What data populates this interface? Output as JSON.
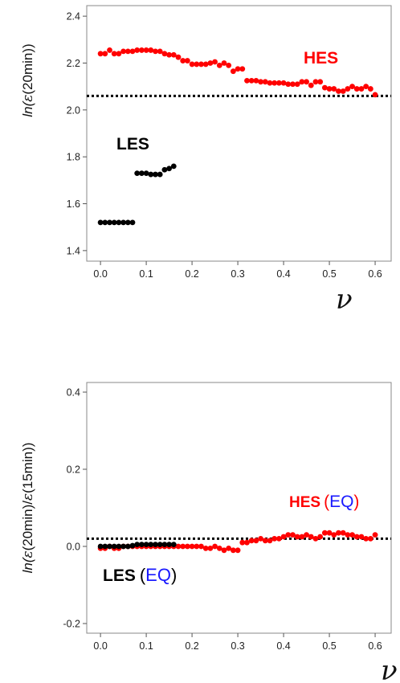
{
  "chart_data": [
    {
      "type": "scatter",
      "ylabel_prefix": "ln(",
      "ylabel_eps": "ε",
      "ylabel_rest": "(20min",
      "ylabel_close": "))",
      "xlabel": "ν",
      "xlim": [
        -0.03,
        0.635
      ],
      "ylim": [
        1.355,
        2.445
      ],
      "x_ticks": [
        "0.0",
        "0.1",
        "0.2",
        "0.3",
        "0.4",
        "0.5",
        "0.6"
      ],
      "x_tick_values": [
        0,
        0.1,
        0.2,
        0.3,
        0.4,
        0.5,
        0.6
      ],
      "y_ticks": [
        "1.4",
        "1.6",
        "1.8",
        "2.0",
        "2.2",
        "2.4"
      ],
      "y_tick_values": [
        1.4,
        1.6,
        1.8,
        2.0,
        2.2,
        2.4
      ],
      "grid": false,
      "reference_line_y": 2.06,
      "series": [
        {
          "name": "LES",
          "color": "#000000",
          "x": [
            0.0,
            0.01,
            0.02,
            0.03,
            0.04,
            0.05,
            0.06,
            0.07,
            0.08,
            0.09,
            0.1,
            0.11,
            0.12,
            0.13,
            0.14,
            0.15,
            0.16
          ],
          "y": [
            1.52,
            1.52,
            1.52,
            1.52,
            1.52,
            1.52,
            1.52,
            1.52,
            1.73,
            1.73,
            1.73,
            1.725,
            1.725,
            1.725,
            1.745,
            1.75,
            1.76
          ]
        },
        {
          "name": "HES",
          "color": "#ff0000",
          "x": [
            0.0,
            0.01,
            0.02,
            0.03,
            0.04,
            0.05,
            0.06,
            0.07,
            0.08,
            0.09,
            0.1,
            0.11,
            0.12,
            0.13,
            0.14,
            0.15,
            0.16,
            0.17,
            0.18,
            0.19,
            0.2,
            0.21,
            0.22,
            0.23,
            0.24,
            0.25,
            0.26,
            0.27,
            0.28,
            0.29,
            0.3,
            0.31,
            0.32,
            0.33,
            0.34,
            0.35,
            0.36,
            0.37,
            0.38,
            0.39,
            0.4,
            0.41,
            0.42,
            0.43,
            0.44,
            0.45,
            0.46,
            0.47,
            0.48,
            0.49,
            0.5,
            0.51,
            0.52,
            0.53,
            0.54,
            0.55,
            0.56,
            0.57,
            0.58,
            0.59,
            0.6
          ],
          "y": [
            2.24,
            2.24,
            2.255,
            2.24,
            2.24,
            2.25,
            2.25,
            2.25,
            2.255,
            2.255,
            2.255,
            2.255,
            2.25,
            2.25,
            2.24,
            2.235,
            2.235,
            2.225,
            2.21,
            2.21,
            2.195,
            2.195,
            2.195,
            2.195,
            2.2,
            2.205,
            2.19,
            2.2,
            2.19,
            2.165,
            2.175,
            2.175,
            2.125,
            2.125,
            2.125,
            2.12,
            2.12,
            2.115,
            2.115,
            2.115,
            2.115,
            2.11,
            2.11,
            2.11,
            2.12,
            2.12,
            2.105,
            2.12,
            2.12,
            2.095,
            2.09,
            2.09,
            2.08,
            2.08,
            2.09,
            2.1,
            2.09,
            2.09,
            2.1,
            2.09,
            2.065
          ]
        }
      ],
      "annotations": {
        "hes": "HES",
        "les": "LES"
      }
    },
    {
      "type": "scatter",
      "ylabel_prefix": "ln(",
      "ylabel_eps": "ε",
      "ylabel_rest": "(20min)/",
      "ylabel_eps2": "ε",
      "ylabel_rest2": "(15min",
      "ylabel_close": "))",
      "xlabel": "ν",
      "xlim": [
        -0.03,
        0.635
      ],
      "ylim": [
        -0.225,
        0.425
      ],
      "x_ticks": [
        "0.0",
        "0.1",
        "0.2",
        "0.3",
        "0.4",
        "0.5",
        "0.6"
      ],
      "x_tick_values": [
        0,
        0.1,
        0.2,
        0.3,
        0.4,
        0.5,
        0.6
      ],
      "y_ticks": [
        "-0.2",
        "0.0",
        "0.2",
        "0.4"
      ],
      "y_tick_values": [
        -0.2,
        0.0,
        0.2,
        0.4
      ],
      "grid": false,
      "reference_line_y": 0.02,
      "series": [
        {
          "name": "HES",
          "color": "#ff0000",
          "x": [
            0.0,
            0.01,
            0.02,
            0.03,
            0.04,
            0.05,
            0.06,
            0.07,
            0.08,
            0.09,
            0.1,
            0.11,
            0.12,
            0.13,
            0.14,
            0.15,
            0.16,
            0.17,
            0.18,
            0.19,
            0.2,
            0.21,
            0.22,
            0.23,
            0.24,
            0.25,
            0.26,
            0.27,
            0.28,
            0.29,
            0.3,
            0.31,
            0.32,
            0.33,
            0.34,
            0.35,
            0.36,
            0.37,
            0.38,
            0.39,
            0.4,
            0.41,
            0.42,
            0.43,
            0.44,
            0.45,
            0.46,
            0.47,
            0.48,
            0.49,
            0.5,
            0.51,
            0.52,
            0.53,
            0.54,
            0.55,
            0.56,
            0.57,
            0.58,
            0.59,
            0.6
          ],
          "y": [
            -0.005,
            -0.005,
            0.0,
            -0.005,
            -0.005,
            0.0,
            0.0,
            0.0,
            0.0,
            0.0,
            0.0,
            0.0,
            0.0,
            0.0,
            0.0,
            0.0,
            0.0,
            0.0,
            0.0,
            0.0,
            0.0,
            0.0,
            0.0,
            -0.005,
            -0.005,
            0.0,
            -0.005,
            -0.01,
            -0.005,
            -0.01,
            -0.01,
            0.01,
            0.01,
            0.015,
            0.015,
            0.02,
            0.015,
            0.015,
            0.02,
            0.02,
            0.025,
            0.03,
            0.03,
            0.025,
            0.025,
            0.03,
            0.025,
            0.02,
            0.025,
            0.035,
            0.035,
            0.03,
            0.035,
            0.035,
            0.03,
            0.03,
            0.025,
            0.025,
            0.02,
            0.02,
            0.03
          ]
        },
        {
          "name": "LES",
          "color": "#000000",
          "x": [
            0.0,
            0.01,
            0.02,
            0.03,
            0.04,
            0.05,
            0.06,
            0.07,
            0.08,
            0.09,
            0.1,
            0.11,
            0.12,
            0.13,
            0.14,
            0.15,
            0.16
          ],
          "y": [
            0.0,
            0.0,
            0.0,
            0.0,
            0.0,
            0.0,
            0.0,
            0.002,
            0.005,
            0.005,
            0.005,
            0.005,
            0.005,
            0.005,
            0.005,
            0.005,
            0.005
          ]
        }
      ],
      "annotations": {
        "hes": "HES",
        "les": "LES",
        "eq": "EQ",
        "open_paren": "(",
        "close_paren": ")"
      }
    }
  ]
}
